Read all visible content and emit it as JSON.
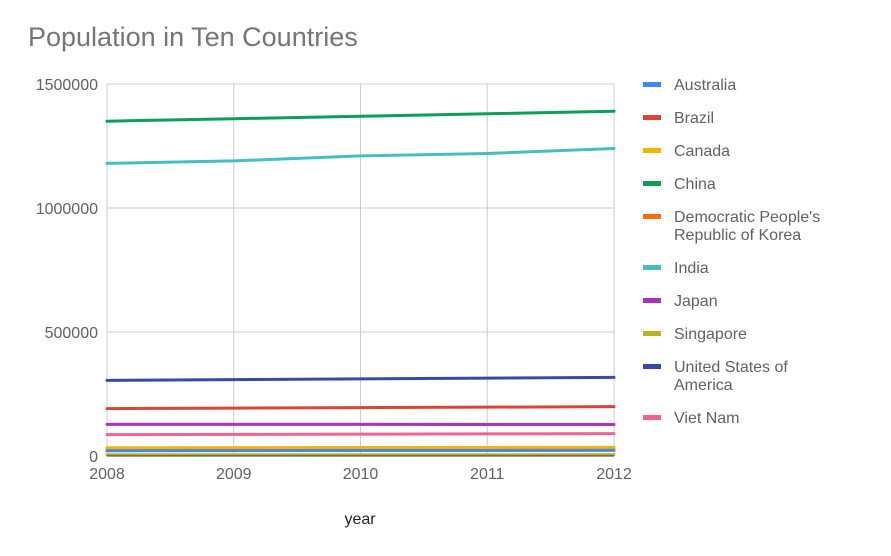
{
  "chart_data": {
    "type": "line",
    "title": "Population in Ten Countries",
    "xlabel": "year",
    "ylabel": "",
    "x": [
      2008,
      2009,
      2010,
      2011,
      2012
    ],
    "x_tick_labels": [
      "2008",
      "2009",
      "2010",
      "2011",
      "2012"
    ],
    "ylim": [
      0,
      1500000
    ],
    "y_ticks": [
      0,
      500000,
      1000000,
      1500000
    ],
    "y_tick_labels": [
      "0",
      "500000",
      "1000000",
      "1500000"
    ],
    "grid": true,
    "legend_position": "right",
    "series": [
      {
        "name": "Australia",
        "color": "#4285F4",
        "values": [
          21000,
          21500,
          22000,
          22300,
          22700
        ]
      },
      {
        "name": "Brazil",
        "color": "#DB4437",
        "values": [
          191000,
          193000,
          195000,
          197000,
          199000
        ]
      },
      {
        "name": "Canada",
        "color": "#F4B400",
        "values": [
          33300,
          33700,
          34100,
          34500,
          34900
        ]
      },
      {
        "name": "China",
        "color": "#0F9D58",
        "values": [
          1350000,
          1360000,
          1370000,
          1380000,
          1390000
        ]
      },
      {
        "name": "Democratic People's Republic of Korea",
        "label_lines": [
          "Democratic People's",
          "Republic of Korea"
        ],
        "color": "#FF6D00",
        "values": [
          24000,
          24200,
          24500,
          24700,
          24900
        ]
      },
      {
        "name": "India",
        "color": "#46BDC6",
        "values": [
          1180000,
          1190000,
          1210000,
          1220000,
          1240000
        ]
      },
      {
        "name": "Japan",
        "color": "#AB30C4",
        "values": [
          127500,
          127500,
          127300,
          127200,
          127000
        ]
      },
      {
        "name": "Singapore",
        "color": "#B7B322",
        "values": [
          4800,
          5000,
          5100,
          5200,
          5300
        ]
      },
      {
        "name": "United States of America",
        "label_lines": [
          "United States of",
          "America"
        ],
        "color": "#3949AB",
        "values": [
          305000,
          308000,
          311000,
          314000,
          317000
        ]
      },
      {
        "name": "Viet Nam",
        "color": "#F06292",
        "values": [
          86000,
          87000,
          88000,
          89000,
          90000
        ]
      }
    ]
  }
}
